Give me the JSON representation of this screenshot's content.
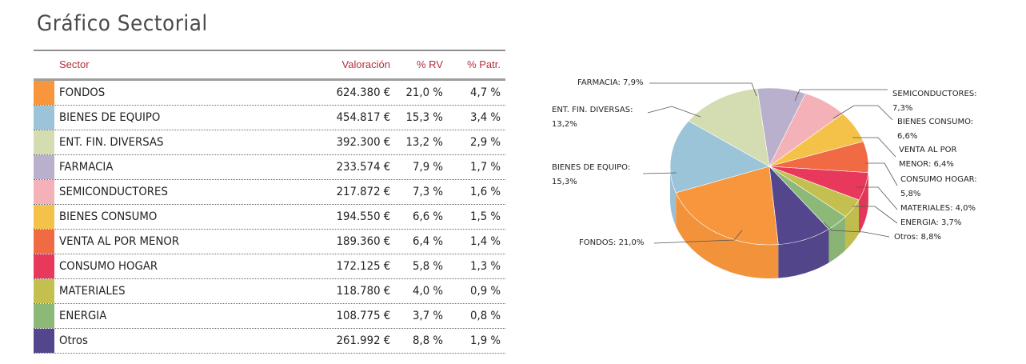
{
  "title": "Gráfico Sectorial",
  "table": {
    "headers": {
      "sector": "Sector",
      "valoracion": "Valoración",
      "rv": "% RV",
      "patr": "% Patr."
    },
    "rows": [
      {
        "sector": "FONDOS",
        "valoracion": "624.380 €",
        "rv": "21,0 %",
        "patr": "4,7 %",
        "color": "#f7963c"
      },
      {
        "sector": "BIENES DE EQUIPO",
        "valoracion": "454.817 €",
        "rv": "15,3 %",
        "patr": "3,4 %",
        "color": "#9cc4d9"
      },
      {
        "sector": "ENT. FIN. DIVERSAS",
        "valoracion": "392.300 €",
        "rv": "13,2 %",
        "patr": "2,9 %",
        "color": "#d4dcb2"
      },
      {
        "sector": "FARMACIA",
        "valoracion": "233.574 €",
        "rv": "7,9 %",
        "patr": "1,7 %",
        "color": "#b8b0cc"
      },
      {
        "sector": "SEMICONDUCTORES",
        "valoracion": "217.872 €",
        "rv": "7,3 %",
        "patr": "1,6 %",
        "color": "#f4b2b8"
      },
      {
        "sector": "BIENES CONSUMO",
        "valoracion": "194.550 €",
        "rv": "6,6 %",
        "patr": "1,5 %",
        "color": "#f4c248"
      },
      {
        "sector": "VENTA AL POR MENOR",
        "valoracion": "189.360 €",
        "rv": "6,4 %",
        "patr": "1,4 %",
        "color": "#f06a44"
      },
      {
        "sector": "CONSUMO HOGAR",
        "valoracion": "172.125 €",
        "rv": "5,8 %",
        "patr": "1,3 %",
        "color": "#e8385c"
      },
      {
        "sector": "MATERIALES",
        "valoracion": "118.780 €",
        "rv": "4,0 %",
        "patr": "0,9 %",
        "color": "#c4c050"
      },
      {
        "sector": "ENERGIA",
        "valoracion": "108.775 €",
        "rv": "3,7 %",
        "patr": "0,8 %",
        "color": "#8cb878"
      },
      {
        "sector": "Otros",
        "valoracion": "261.992 €",
        "rv": "8,8 %",
        "patr": "1,9 %",
        "color": "#54468c"
      }
    ]
  },
  "chart_data": {
    "type": "pie",
    "title": "",
    "slices": [
      {
        "label": "FONDOS",
        "value": 21.0,
        "label_lines": [
          "FONDOS: 21,0%"
        ],
        "color": "#f7963c"
      },
      {
        "label": "BIENES DE EQUIPO",
        "value": 15.3,
        "label_lines": [
          "BIENES DE EQUIPO:",
          "15,3%"
        ],
        "color": "#9cc4d9"
      },
      {
        "label": "ENT. FIN. DIVERSAS",
        "value": 13.2,
        "label_lines": [
          "ENT. FIN. DIVERSAS:",
          "13,2%"
        ],
        "color": "#d4dcb2"
      },
      {
        "label": "FARMACIA",
        "value": 7.9,
        "label_lines": [
          "FARMACIA: 7,9%"
        ],
        "color": "#b8b0cc"
      },
      {
        "label": "SEMICONDUCTORES",
        "value": 7.3,
        "label_lines": [
          "SEMICONDUCTORES:",
          "7,3%"
        ],
        "color": "#f4b2b8"
      },
      {
        "label": "BIENES CONSUMO",
        "value": 6.6,
        "label_lines": [
          "BIENES CONSUMO:",
          "6,6%"
        ],
        "color": "#f4c248"
      },
      {
        "label": "VENTA AL POR MENOR",
        "value": 6.4,
        "label_lines": [
          "VENTA AL POR",
          "MENOR: 6,4%"
        ],
        "color": "#f06a44"
      },
      {
        "label": "CONSUMO HOGAR",
        "value": 5.8,
        "label_lines": [
          "CONSUMO HOGAR:",
          "5,8%"
        ],
        "color": "#e8385c"
      },
      {
        "label": "MATERIALES",
        "value": 4.0,
        "label_lines": [
          "MATERIALES: 4,0%"
        ],
        "color": "#c4c050"
      },
      {
        "label": "ENERGIA",
        "value": 3.7,
        "label_lines": [
          "ENERGIA: 3,7%"
        ],
        "color": "#8cb878"
      },
      {
        "label": "Otros",
        "value": 8.8,
        "label_lines": [
          "Otros: 8,8%"
        ],
        "color": "#54468c"
      }
    ]
  }
}
